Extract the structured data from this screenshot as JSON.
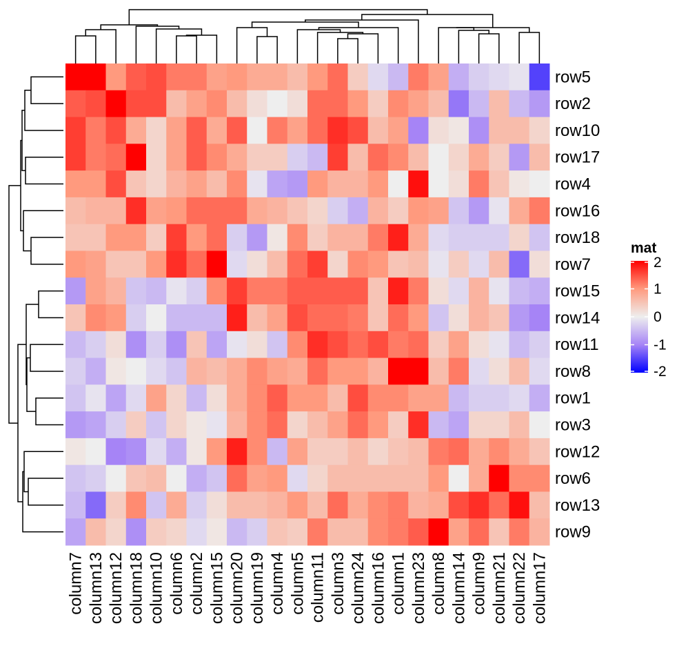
{
  "chart_data": {
    "type": "heatmap",
    "title": "",
    "rows": [
      "row5",
      "row2",
      "row10",
      "row17",
      "row4",
      "row16",
      "row18",
      "row7",
      "row15",
      "row14",
      "row11",
      "row8",
      "row1",
      "row3",
      "row12",
      "row6",
      "row13",
      "row9"
    ],
    "columns": [
      "column7",
      "column13",
      "column12",
      "column18",
      "column10",
      "column6",
      "column2",
      "column15",
      "column20",
      "column19",
      "column4",
      "column5",
      "column11",
      "column3",
      "column24",
      "column16",
      "column1",
      "column23",
      "column8",
      "column14",
      "column9",
      "column21",
      "column22",
      "column17"
    ],
    "values": [
      [
        2.1,
        2.1,
        1.0,
        1.4,
        1.5,
        1.2,
        1.2,
        0.9,
        1.0,
        0.8,
        0.8,
        0.6,
        1.0,
        1.3,
        0.4,
        -0.2,
        -0.5,
        1.2,
        0.9,
        -0.6,
        -0.3,
        -0.2,
        -0.1,
        -1.5
      ],
      [
        1.4,
        1.5,
        2.2,
        1.5,
        1.5,
        0.6,
        0.9,
        1.1,
        0.6,
        0.2,
        0.0,
        0.2,
        1.3,
        1.3,
        1.0,
        0.4,
        1.1,
        0.9,
        0.6,
        -1.1,
        -0.5,
        0.6,
        -0.5,
        -0.8
      ],
      [
        1.6,
        1.2,
        1.5,
        0.8,
        0.3,
        0.9,
        1.4,
        0.8,
        1.4,
        0.0,
        1.2,
        0.9,
        1.3,
        1.7,
        1.5,
        0.6,
        0.9,
        -1.0,
        0.2,
        0.1,
        -0.9,
        0.6,
        0.6,
        0.3
      ],
      [
        1.6,
        1.2,
        1.3,
        2.2,
        0.3,
        0.9,
        1.4,
        1.1,
        0.8,
        0.4,
        0.4,
        -0.3,
        -0.5,
        1.6,
        0.6,
        1.3,
        1.1,
        0.6,
        0.0,
        0.3,
        0.8,
        0.4,
        -0.8,
        0.6
      ],
      [
        1.0,
        1.0,
        1.5,
        0.5,
        0.3,
        0.7,
        0.9,
        0.6,
        1.1,
        -0.1,
        -0.7,
        -0.8,
        1.0,
        0.7,
        0.7,
        1.0,
        0.0,
        1.9,
        0.0,
        0.2,
        1.2,
        0.5,
        0.1,
        0.0
      ],
      [
        0.6,
        0.7,
        0.7,
        1.7,
        0.9,
        1.0,
        1.3,
        1.3,
        1.3,
        0.8,
        0.7,
        0.5,
        0.3,
        -0.3,
        -0.6,
        0.7,
        0.4,
        1.0,
        0.9,
        -0.4,
        -0.8,
        -0.1,
        0.8,
        1.2
      ],
      [
        0.5,
        0.5,
        1.0,
        1.0,
        0.4,
        1.6,
        1.0,
        1.3,
        -0.3,
        -0.8,
        0.1,
        1.1,
        0.4,
        0.7,
        0.7,
        1.2,
        1.8,
        0.8,
        -0.2,
        -0.3,
        -0.3,
        -0.3,
        0.3,
        -0.4
      ],
      [
        1.0,
        0.9,
        0.5,
        0.5,
        1.0,
        1.7,
        1.3,
        2.2,
        -0.2,
        0.2,
        0.6,
        1.3,
        1.6,
        0.3,
        1.1,
        1.0,
        0.5,
        0.6,
        -0.1,
        0.4,
        -0.2,
        0.6,
        -1.2,
        0.2
      ],
      [
        -0.8,
        0.9,
        0.7,
        -0.4,
        -0.5,
        -0.1,
        -0.3,
        1.1,
        1.6,
        1.2,
        1.2,
        1.4,
        1.4,
        1.4,
        1.4,
        0.5,
        1.8,
        1.2,
        0.2,
        -0.2,
        0.7,
        -0.1,
        -0.5,
        -0.6
      ],
      [
        0.5,
        1.1,
        1.0,
        -0.3,
        0.0,
        -0.5,
        -0.5,
        -0.5,
        1.8,
        0.6,
        0.9,
        1.5,
        1.3,
        1.3,
        1.2,
        0.5,
        1.3,
        1.0,
        -0.4,
        0.2,
        0.7,
        0.5,
        -0.8,
        -1.0
      ],
      [
        -0.5,
        -0.3,
        0.2,
        -0.9,
        -0.3,
        -0.9,
        0.5,
        -0.7,
        -0.1,
        0.2,
        -0.4,
        1.1,
        1.7,
        1.5,
        1.3,
        1.5,
        1.2,
        1.3,
        0.4,
        0.9,
        0.2,
        -0.1,
        -0.5,
        -0.3
      ],
      [
        -0.3,
        -0.6,
        0.1,
        0.0,
        -0.2,
        -0.4,
        0.7,
        0.6,
        0.8,
        1.1,
        0.9,
        0.8,
        1.3,
        1.0,
        1.0,
        0.7,
        2.2,
        2.0,
        0.6,
        1.2,
        -0.2,
        0.2,
        0.6,
        -0.2
      ],
      [
        -0.4,
        -0.1,
        -0.7,
        -0.2,
        0.9,
        0.3,
        -0.5,
        0.2,
        0.8,
        1.1,
        1.4,
        1.0,
        1.0,
        0.6,
        1.5,
        1.1,
        1.1,
        0.9,
        0.9,
        -0.5,
        -0.3,
        -0.3,
        -0.2,
        -0.6
      ],
      [
        -0.8,
        -0.7,
        -0.3,
        0.4,
        -0.4,
        0.3,
        0.1,
        -0.1,
        0.7,
        1.1,
        1.3,
        0.3,
        0.6,
        0.9,
        1.3,
        1.0,
        0.4,
        1.7,
        -0.5,
        -0.7,
        0.3,
        0.3,
        0.6,
        0.0
      ],
      [
        0.1,
        0.0,
        -1.0,
        -0.9,
        -0.2,
        -0.6,
        0.1,
        1.0,
        1.8,
        1.1,
        -0.5,
        0.9,
        0.4,
        0.4,
        0.6,
        0.3,
        0.5,
        0.6,
        1.2,
        1.3,
        0.8,
        1.1,
        0.8,
        0.5
      ],
      [
        -0.4,
        -0.3,
        0.0,
        0.5,
        0.6,
        0.0,
        -0.6,
        -0.4,
        1.3,
        0.9,
        1.0,
        -0.2,
        0.3,
        0.6,
        0.6,
        0.6,
        0.6,
        0.6,
        1.0,
        0.0,
        0.8,
        2.0,
        1.1,
        1.1
      ],
      [
        -0.5,
        -1.2,
        0.4,
        1.1,
        -0.4,
        0.8,
        -0.3,
        0.2,
        0.6,
        0.6,
        0.7,
        1.0,
        0.6,
        1.3,
        0.8,
        1.1,
        1.2,
        0.7,
        0.8,
        1.5,
        1.7,
        1.3,
        1.9,
        0.6
      ],
      [
        -0.7,
        0.6,
        0.3,
        -0.9,
        0.4,
        0.3,
        -0.2,
        0.1,
        -0.5,
        -0.3,
        0.5,
        0.4,
        1.2,
        0.6,
        0.6,
        1.1,
        1.2,
        1.4,
        2.0,
        0.9,
        1.3,
        0.5,
        1.2,
        0.7
      ]
    ],
    "color_scale": {
      "breaks": [
        -2,
        -1,
        0,
        1,
        2
      ],
      "colors": [
        "#0000FF",
        "#A684F6",
        "#EEEEEE",
        "#FF9A7E",
        "#FF0000"
      ]
    },
    "legend": {
      "title": "mat",
      "ticks": [
        "2",
        "1",
        "0",
        "-1",
        "-2"
      ],
      "tick_values": [
        2,
        1,
        0,
        -1,
        -2
      ],
      "placement": "right"
    },
    "column_dendrogram": {
      "h": 78,
      "c": [
        {
          "h": 56,
          "c": [
            {
              "h": 49,
              "c": [
                {
                  "h": 40,
                  "c": [
                    0,
                    1
                  ]
                },
                2
              ]
            },
            {
              "h": 54,
              "c": [
                3,
                {
                  "h": 50,
                  "c": [
                    4,
                    {
                      "h": 41,
                      "c": [
                        {
                          "h": 40,
                          "c": [
                            5,
                            6
                          ]
                        },
                        7
                      ]
                    }
                  ]
                }
              ]
            }
          ]
        },
        {
          "h": 71,
          "c": [
            {
              "h": 63,
              "c": [
                {
                  "h": 60,
                  "c": [
                    {
                      "h": 52,
                      "c": [
                        8,
                        {
                          "h": 39,
                          "c": [
                            9,
                            10
                          ]
                        }
                      ]
                    },
                    {
                      "h": 52,
                      "c": [
                        {
                          "h": 49,
                          "c": [
                            11,
                            {
                              "h": 45,
                              "c": [
                                12,
                                {
                                  "h": 43,
                                  "c": [
                                    {
                                      "h": 36,
                                      "c": [
                                        13,
                                        14
                                      ]
                                    },
                                    15
                                  ]
                                }
                              ]
                            }
                          ]
                        },
                        16
                      ]
                    }
                  ]
                },
                17
              ]
            },
            {
              "h": 52,
              "c": [
                {
                  "h": 52,
                  "c": [
                    18,
                    {
                      "h": 48,
                      "c": [
                        19,
                        {
                          "h": 43,
                          "c": [
                            20,
                            21
                          ]
                        }
                      ]
                    }
                  ]
                },
                {
                  "h": 45,
                  "c": [
                    22,
                    23
                  ]
                }
              ]
            }
          ]
        }
      ]
    },
    "row_dendrogram": {
      "h": 79,
      "c": [
        {
          "h": 62,
          "c": [
            {
              "h": 60,
              "c": [
                {
                  "h": 56,
                  "c": [
                    {
                      "h": 47,
                      "c": [
                        0,
                        1
                      ]
                    },
                    2
                  ]
                },
                {
                  "h": 55,
                  "c": [
                    3,
                    4
                  ]
                }
              ]
            },
            {
              "h": 58,
              "c": [
                5,
                {
                  "h": 47,
                  "c": [
                    6,
                    7
                  ]
                }
              ]
            }
          ]
        },
        {
          "h": 66,
          "c": [
            {
              "h": 54,
              "c": [
                {
                  "h": 36,
                  "c": [
                    8,
                    9
                  ]
                },
                {
                  "h": 53,
                  "c": [
                    {
                      "h": 48,
                      "c": [
                        10,
                        11
                      ]
                    },
                    {
                      "h": 40,
                      "c": [
                        12,
                        13
                      ]
                    }
                  ]
                }
              ]
            },
            {
              "h": 59,
              "c": [
                {
                  "h": 57,
                  "c": [
                    14,
                    {
                      "h": 51,
                      "c": [
                        15,
                        16
                      ]
                    }
                  ]
                },
                17
              ]
            }
          ]
        }
      ]
    }
  }
}
